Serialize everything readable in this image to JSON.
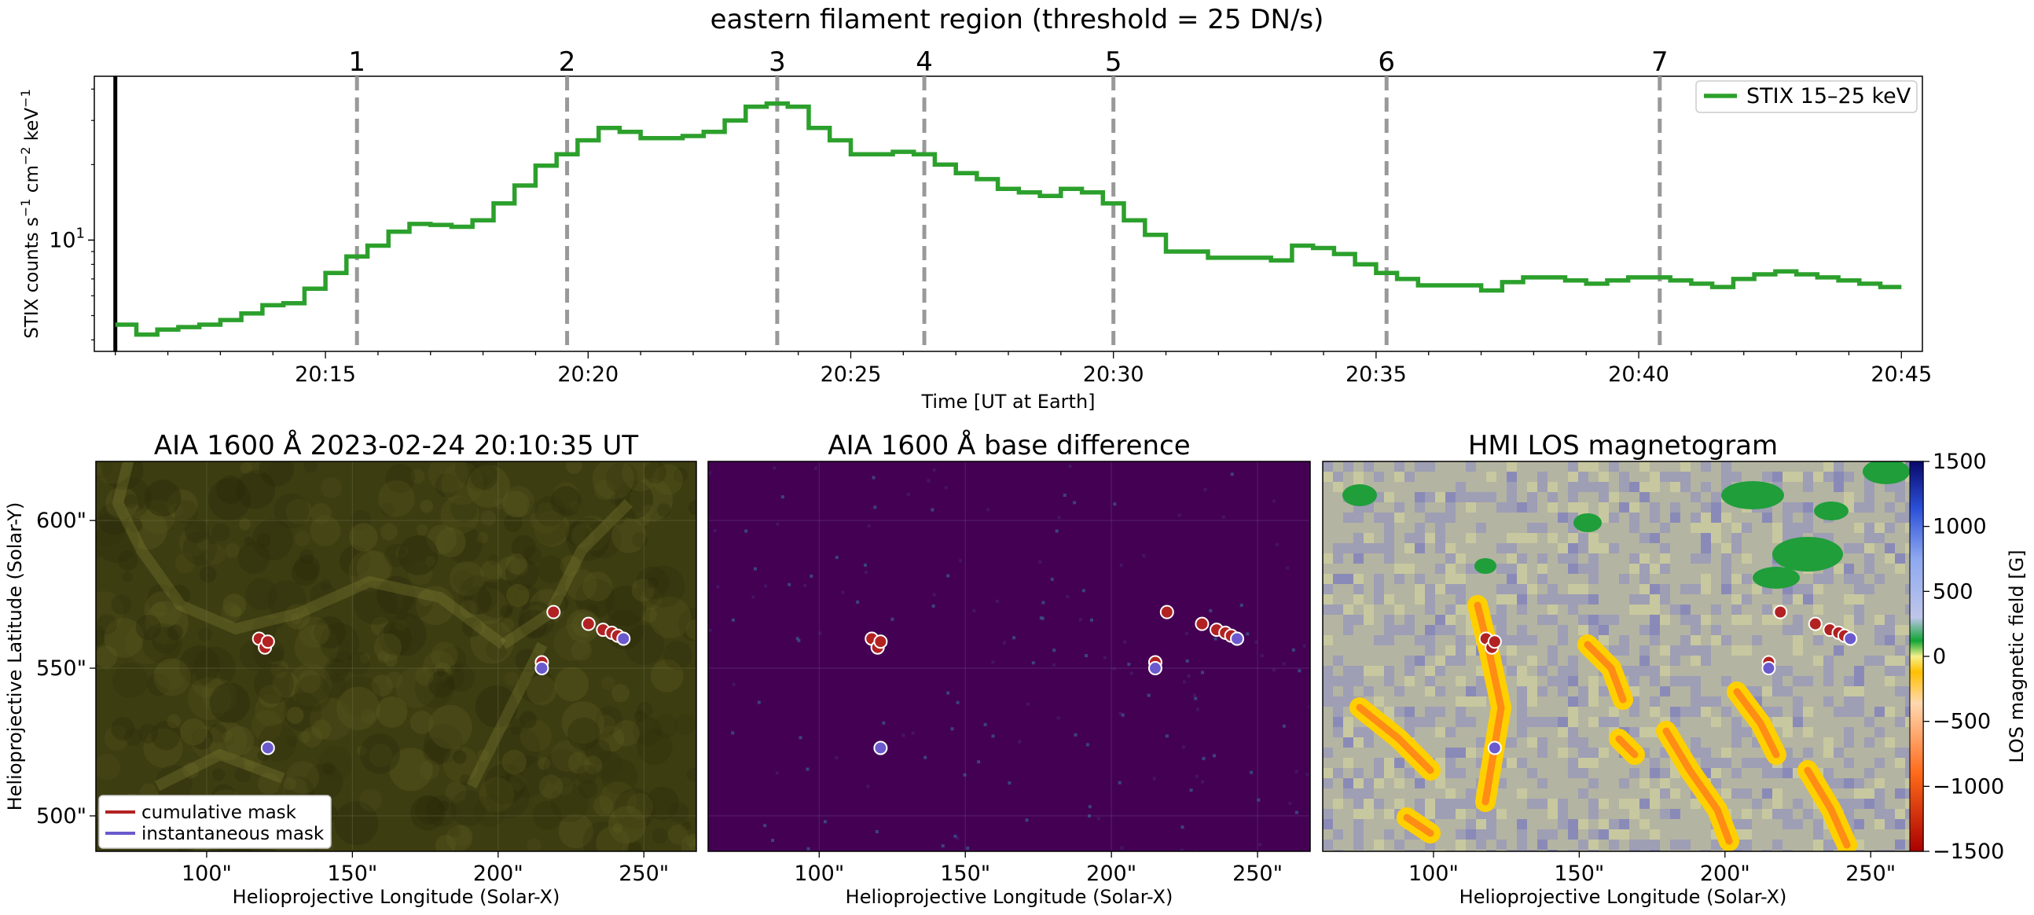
{
  "figure_title": "eastern filament region (threshold = 25 DN/s)",
  "chart_data": [
    {
      "type": "line",
      "step": true,
      "title": "",
      "xlabel": "Time [UT at Earth]",
      "ylabel_main": "STIX counts s",
      "ylabel_parts": [
        "STIX counts s",
        "−1",
        " cm",
        "−2",
        " keV",
        "−1"
      ],
      "yscale": "log",
      "ylim": [
        3.6,
        45
      ],
      "xlim": [
        10.6,
        45.4
      ],
      "x_unit": "minutes after 20:00",
      "x_ticks": [
        15,
        20,
        25,
        30,
        35,
        40,
        45
      ],
      "x_tick_labels": [
        "20:15",
        "20:20",
        "20:25",
        "20:30",
        "20:35",
        "20:40",
        "20:45"
      ],
      "y_major_tick_base": "10",
      "y_major_tick_exp": "1",
      "y_major_tick_value": 10,
      "y_minor_ticks": [
        4,
        5,
        6,
        7,
        8,
        9,
        20,
        30,
        40
      ],
      "start_line_x": 11.0,
      "event_lines": [
        {
          "label": "1",
          "x": 15.6
        },
        {
          "label": "2",
          "x": 19.6
        },
        {
          "label": "3",
          "x": 23.6
        },
        {
          "label": "4",
          "x": 26.4
        },
        {
          "label": "5",
          "x": 30.0
        },
        {
          "label": "6",
          "x": 35.2
        },
        {
          "label": "7",
          "x": 40.4
        }
      ],
      "legend": {
        "label": "STIX 15–25 keV",
        "color": "#2ca02c",
        "position": "top-right"
      },
      "series": [
        {
          "name": "STIX 15–25 keV",
          "color": "#2ca02c",
          "x_step_edges": [
            11.0,
            11.4,
            11.8,
            12.2,
            12.6,
            13.0,
            13.4,
            13.8,
            14.2,
            14.6,
            15.0,
            15.4,
            15.8,
            16.2,
            16.6,
            17.0,
            17.4,
            17.8,
            18.2,
            18.6,
            19.0,
            19.4,
            19.8,
            20.2,
            20.6,
            21.0,
            21.4,
            21.8,
            22.2,
            22.6,
            23.0,
            23.4,
            23.8,
            24.2,
            24.6,
            25.0,
            25.4,
            25.8,
            26.2,
            26.6,
            27.0,
            27.4,
            27.8,
            28.2,
            28.6,
            29.0,
            29.4,
            29.8,
            30.2,
            30.6,
            31.0,
            31.4,
            31.8,
            32.2,
            32.6,
            33.0,
            33.4,
            33.8,
            34.2,
            34.6,
            35.0,
            35.4,
            35.8,
            36.2,
            36.6,
            37.0,
            37.4,
            37.8,
            38.2,
            38.6,
            39.0,
            39.4,
            39.8,
            40.2,
            40.6,
            41.0,
            41.4,
            41.8,
            42.2,
            42.6,
            43.0,
            43.4,
            43.8,
            44.2,
            44.6,
            45.0,
            45.4
          ],
          "values": [
            4.6,
            4.2,
            4.4,
            4.5,
            4.6,
            4.8,
            5.1,
            5.5,
            5.6,
            6.4,
            7.4,
            8.6,
            9.5,
            10.8,
            11.6,
            11.5,
            11.3,
            12.0,
            14.0,
            16.5,
            19.8,
            22.0,
            25.0,
            28.0,
            27.0,
            25.5,
            25.5,
            26.0,
            27.0,
            30.0,
            34.0,
            35.0,
            34.0,
            28.0,
            25.0,
            22.0,
            22.0,
            22.5,
            22.0,
            20.0,
            18.5,
            17.5,
            16.0,
            15.5,
            15.0,
            16.0,
            15.5,
            14.0,
            12.0,
            10.5,
            9.0,
            9.0,
            8.5,
            8.5,
            8.5,
            8.3,
            9.5,
            9.3,
            8.8,
            8.0,
            7.4,
            7.0,
            6.6,
            6.6,
            6.6,
            6.3,
            6.8,
            7.1,
            7.1,
            6.9,
            6.7,
            6.9,
            7.1,
            7.1,
            6.9,
            6.7,
            6.5,
            7.0,
            7.3,
            7.5,
            7.3,
            7.1,
            6.9,
            6.7,
            6.5
          ]
        }
      ]
    },
    {
      "type": "heatmap",
      "title": "AIA 1600 Å 2023-02-24 20:10:35 UT",
      "xlabel": "Helioprojective Longitude (Solar-X)",
      "ylabel": "Helioprojective Latitude (Solar-Y)",
      "xlim": [
        62,
        268
      ],
      "ylim": [
        488,
        620
      ],
      "x_ticks": [
        100,
        150,
        200,
        250
      ],
      "x_tick_labels": [
        "100\"",
        "150\"",
        "200\"",
        "250\""
      ],
      "y_ticks": [
        500,
        550,
        600
      ],
      "y_tick_labels": [
        "500\"",
        "550\"",
        "600\""
      ],
      "background": "#3d3d12",
      "legend": [
        {
          "label": "cumulative mask",
          "color": "#b22222"
        },
        {
          "label": "instantaneous mask",
          "color": "#6a5acd"
        }
      ]
    },
    {
      "type": "heatmap",
      "title": "AIA 1600 Å base difference",
      "xlabel": "Helioprojective Longitude (Solar-X)",
      "xlim": [
        62,
        268
      ],
      "ylim": [
        488,
        620
      ],
      "x_ticks": [
        100,
        150,
        200,
        250
      ],
      "x_tick_labels": [
        "100\"",
        "150\"",
        "200\"",
        "250\""
      ],
      "background": "#440154"
    },
    {
      "type": "heatmap",
      "title": "HMI LOS magnetogram",
      "xlabel": "Helioprojective Longitude (Solar-X)",
      "xlim": [
        62,
        268
      ],
      "ylim": [
        488,
        620
      ],
      "x_ticks": [
        100,
        150,
        200,
        250
      ],
      "x_tick_labels": [
        "100\"",
        "150\"",
        "200\"",
        "250\""
      ],
      "background": "#b4b4a2",
      "colorbar": {
        "label": "LOS magnetic field [G]",
        "range": [
          -1500,
          1500
        ],
        "ticks": [
          1500,
          1000,
          500,
          0,
          -500,
          -1000,
          -1500
        ],
        "tick_labels": [
          "1500",
          "1000",
          "500",
          "0",
          "−500",
          "−1000",
          "−1500"
        ]
      }
    }
  ],
  "mask_markers": {
    "cumulative": [
      [
        118,
        560
      ],
      [
        120,
        557
      ],
      [
        121,
        559
      ],
      [
        219,
        569
      ],
      [
        231,
        565
      ],
      [
        236,
        563
      ],
      [
        239,
        562
      ],
      [
        241,
        561
      ],
      [
        215,
        552
      ]
    ],
    "instantaneous": [
      [
        121,
        523
      ],
      [
        243,
        560
      ],
      [
        215,
        550
      ]
    ]
  },
  "colors": {
    "cumulative_mask": "#b22222",
    "instantaneous_mask": "#6a5acd",
    "stix": "#2ca02c",
    "event_line": "#999999"
  }
}
